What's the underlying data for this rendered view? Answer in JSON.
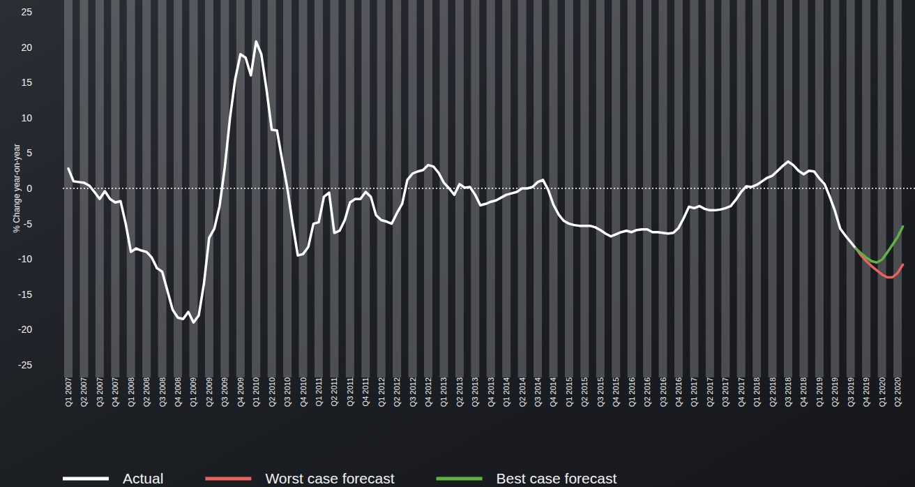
{
  "chart_data": {
    "type": "line",
    "y_label": "% Change year-on-year",
    "categories": [
      "Q1 2007",
      null,
      null,
      "Q2 2007",
      null,
      null,
      "Q3 2007",
      null,
      null,
      "Q4 2007",
      null,
      null,
      "Q1 2008",
      null,
      null,
      "Q2 2008",
      null,
      null,
      "Q3 2008",
      null,
      null,
      "Q4 2008",
      null,
      null,
      "Q1 2009",
      null,
      null,
      "Q2 2009",
      null,
      null,
      "Q3 2009",
      null,
      null,
      "Q4 2009",
      null,
      null,
      "Q1 2010",
      null,
      null,
      "Q2 2010",
      null,
      null,
      "Q3 2010",
      null,
      null,
      "Q4 2010",
      null,
      null,
      "Q1 2011",
      null,
      null,
      "Q2 2011",
      null,
      null,
      "Q3 2011",
      null,
      null,
      "Q4 2011",
      null,
      null,
      "Q1 2012",
      null,
      null,
      "Q2 2012",
      null,
      null,
      "Q3 2012",
      null,
      null,
      "Q4 2012",
      null,
      null,
      "Q1 2013",
      null,
      null,
      "Q2 2013",
      null,
      null,
      "Q3 2013",
      null,
      null,
      "Q4 2013",
      null,
      null,
      "Q1 2014",
      null,
      null,
      "Q2 2014",
      null,
      null,
      "Q3 2014",
      null,
      null,
      "Q4 2014",
      null,
      null,
      "Q1 2015",
      null,
      null,
      "Q2 2015",
      null,
      null,
      "Q3 2015",
      null,
      null,
      "Q4 2015",
      null,
      null,
      "Q1 2016",
      null,
      null,
      "Q2 2016",
      null,
      null,
      "Q3 2016",
      null,
      null,
      "Q4 2016",
      null,
      null,
      "Q1 2017",
      null,
      null,
      "Q2 2017",
      null,
      null,
      "Q3 2017",
      null,
      null,
      "Q4 2017",
      null,
      null,
      "Q1 2018",
      null,
      null,
      "Q2 2018",
      null,
      null,
      "Q3 2018",
      null,
      null,
      "Q4 2018",
      null,
      null,
      "Q1 2019",
      null,
      null,
      "Q2 2019",
      null,
      null,
      "Q3 2019",
      null,
      null,
      "Q4 2019",
      null,
      null,
      "Q1 2020",
      null,
      null,
      "Q2 2020",
      null,
      null
    ],
    "series": [
      {
        "name": "Actual",
        "color": "#ffffff",
        "values": [
          2.8,
          1.0,
          0.9,
          0.8,
          0.4,
          -0.5,
          -1.5,
          -0.4,
          -1.5,
          -2,
          -1.8,
          -5,
          -9,
          -8.5,
          -8.8,
          -9,
          -9.8,
          -11.3,
          -11.8,
          -14.5,
          -17.2,
          -18.3,
          -18.5,
          -17.5,
          -19,
          -18,
          -13.5,
          -7,
          -5.7,
          -2.5,
          3,
          10,
          15.5,
          19,
          18.5,
          16,
          20.8,
          19,
          14,
          8.3,
          8.2,
          4,
          0,
          -5,
          -9.5,
          -9.3,
          -8.3,
          -5,
          -4.8,
          -1.2,
          -0.6,
          -6.3,
          -6,
          -4.5,
          -2,
          -1.5,
          -1.5,
          -0.5,
          -1.2,
          -3.8,
          -4.5,
          -4.7,
          -5,
          -3.5,
          -2.2,
          1.2,
          2.1,
          2.4,
          2.6,
          3.3,
          3.1,
          2.2,
          0.8,
          0.0,
          -0.9,
          0.6,
          0.1,
          0.2,
          -0.9,
          -2.4,
          -2.2,
          -1.9,
          -1.7,
          -1.3,
          -0.9,
          -0.7,
          -0.5,
          0,
          0,
          0.2,
          0.9,
          1.2,
          -0.2,
          -2.3,
          -3.7,
          -4.6,
          -5,
          -5.2,
          -5.3,
          -5.3,
          -5.3,
          -5.5,
          -5.9,
          -6.4,
          -6.8,
          -6.5,
          -6.2,
          -6,
          -6.2,
          -5.9,
          -5.8,
          -5.8,
          -6.2,
          -6.2,
          -6.3,
          -6.4,
          -6.3,
          -5.6,
          -4.2,
          -2.6,
          -2.8,
          -2.5,
          -2.9,
          -3.1,
          -3.1,
          -3,
          -2.8,
          -2.5,
          -1.6,
          -0.5,
          0.3,
          0.2,
          0.5,
          1,
          1.5,
          1.8,
          2.5,
          3.2,
          3.8,
          3.3,
          2.5,
          2,
          2.5,
          2.4,
          1.4,
          0.6,
          -1.2,
          -3.2,
          -5.7,
          -6.7,
          -7.6,
          -8.5,
          null,
          null,
          null,
          null,
          null,
          null,
          null,
          null,
          null,
          null
        ]
      },
      {
        "name": "Worst case forecast",
        "color": "#e8635f",
        "values": [
          null,
          null,
          null,
          null,
          null,
          null,
          null,
          null,
          null,
          null,
          null,
          null,
          null,
          null,
          null,
          null,
          null,
          null,
          null,
          null,
          null,
          null,
          null,
          null,
          null,
          null,
          null,
          null,
          null,
          null,
          null,
          null,
          null,
          null,
          null,
          null,
          null,
          null,
          null,
          null,
          null,
          null,
          null,
          null,
          null,
          null,
          null,
          null,
          null,
          null,
          null,
          null,
          null,
          null,
          null,
          null,
          null,
          null,
          null,
          null,
          null,
          null,
          null,
          null,
          null,
          null,
          null,
          null,
          null,
          null,
          null,
          null,
          null,
          null,
          null,
          null,
          null,
          null,
          null,
          null,
          null,
          null,
          null,
          null,
          null,
          null,
          null,
          null,
          null,
          null,
          null,
          null,
          null,
          null,
          null,
          null,
          null,
          null,
          null,
          null,
          null,
          null,
          null,
          null,
          null,
          null,
          null,
          null,
          null,
          null,
          null,
          null,
          null,
          null,
          null,
          null,
          null,
          null,
          null,
          null,
          null,
          null,
          null,
          null,
          null,
          null,
          null,
          null,
          null,
          null,
          null,
          null,
          null,
          null,
          null,
          null,
          null,
          null,
          null,
          null,
          null,
          null,
          null,
          null,
          null,
          null,
          null,
          null,
          null,
          null,
          null,
          -8.5,
          -9.5,
          -10.3,
          -11,
          -11.6,
          -12.2,
          -12.6,
          -12.6,
          -12,
          -10.8,
          null
        ]
      },
      {
        "name": "Best case forecast",
        "color": "#5fb342",
        "values": [
          null,
          null,
          null,
          null,
          null,
          null,
          null,
          null,
          null,
          null,
          null,
          null,
          null,
          null,
          null,
          null,
          null,
          null,
          null,
          null,
          null,
          null,
          null,
          null,
          null,
          null,
          null,
          null,
          null,
          null,
          null,
          null,
          null,
          null,
          null,
          null,
          null,
          null,
          null,
          null,
          null,
          null,
          null,
          null,
          null,
          null,
          null,
          null,
          null,
          null,
          null,
          null,
          null,
          null,
          null,
          null,
          null,
          null,
          null,
          null,
          null,
          null,
          null,
          null,
          null,
          null,
          null,
          null,
          null,
          null,
          null,
          null,
          null,
          null,
          null,
          null,
          null,
          null,
          null,
          null,
          null,
          null,
          null,
          null,
          null,
          null,
          null,
          null,
          null,
          null,
          null,
          null,
          null,
          null,
          null,
          null,
          null,
          null,
          null,
          null,
          null,
          null,
          null,
          null,
          null,
          null,
          null,
          null,
          null,
          null,
          null,
          null,
          null,
          null,
          null,
          null,
          null,
          null,
          null,
          null,
          null,
          null,
          null,
          null,
          null,
          null,
          null,
          null,
          null,
          null,
          null,
          null,
          null,
          null,
          null,
          null,
          null,
          null,
          null,
          null,
          null,
          null,
          null,
          null,
          null,
          null,
          null,
          null,
          null,
          null,
          null,
          -8.5,
          -9.2,
          -9.8,
          -10.3,
          -10.5,
          -10.1,
          -9.1,
          -8,
          -6.9,
          -5.4,
          null
        ]
      }
    ],
    "ylim": [
      -25,
      25
    ],
    "yticks": [
      -25,
      -20,
      -15,
      -10,
      -5,
      0,
      5,
      10,
      15,
      20,
      25
    ],
    "grid": false,
    "legend": "bottom"
  }
}
